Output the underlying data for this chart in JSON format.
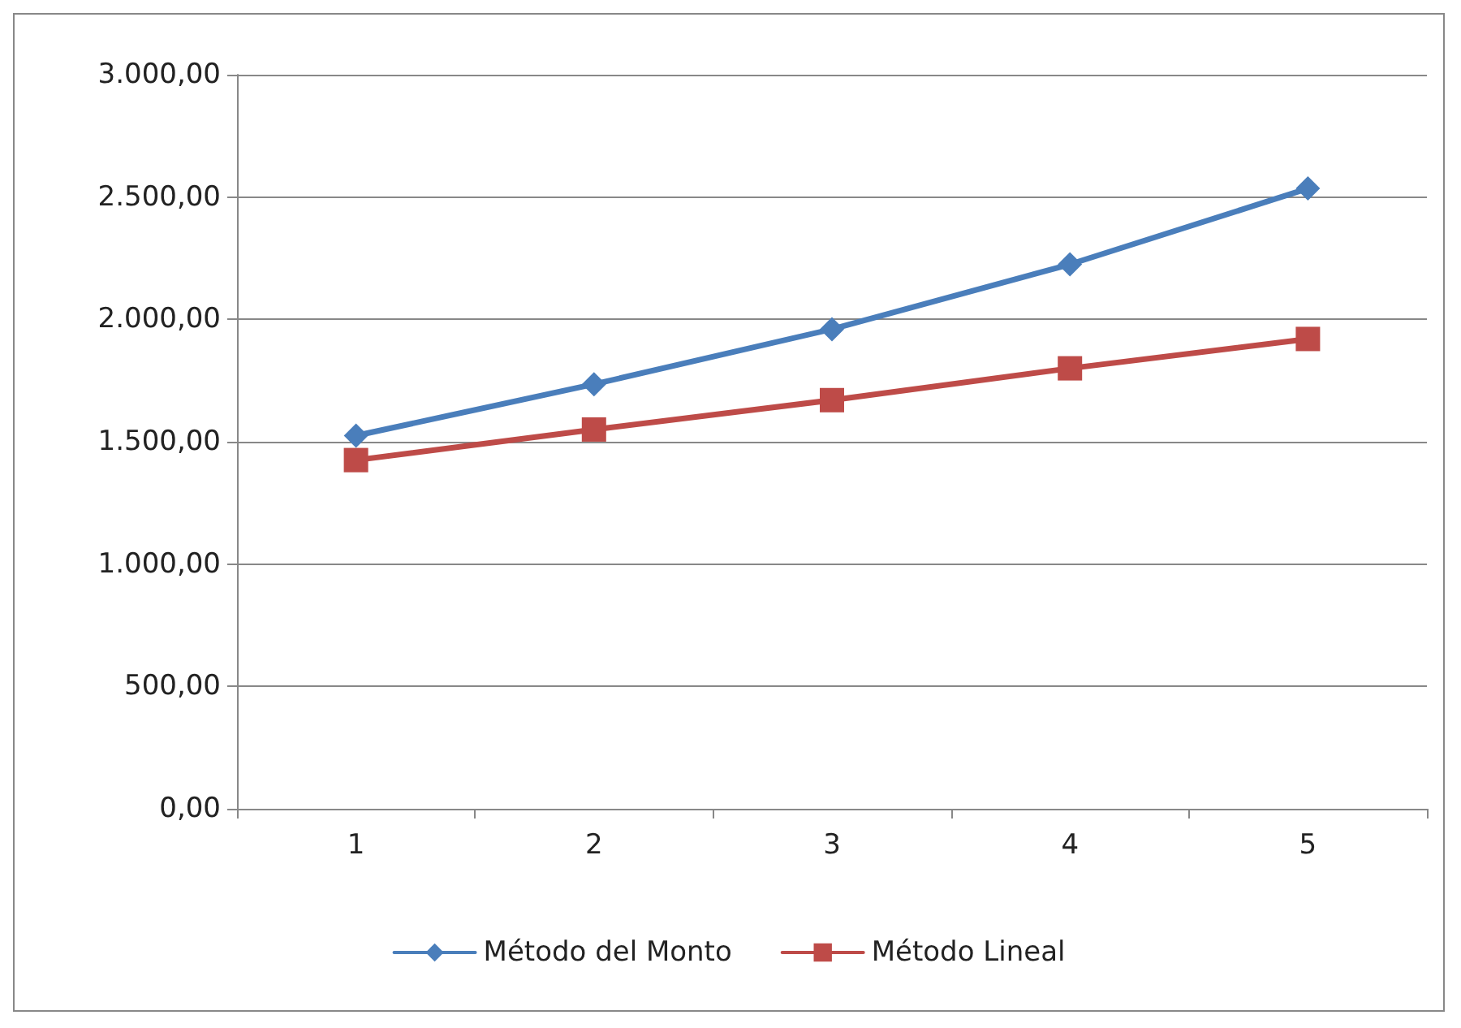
{
  "chart_data": {
    "type": "line",
    "categories": [
      "1",
      "2",
      "3",
      "4",
      "5"
    ],
    "series": [
      {
        "name": "Método del Monto",
        "color": "#4a7ebb",
        "values": [
          1525,
          1735,
          1960,
          2225,
          2535
        ],
        "marker": "diamond"
      },
      {
        "name": "Método Lineal",
        "color": "#be4b48",
        "values": [
          1425,
          1550,
          1670,
          1800,
          1920
        ],
        "marker": "square"
      }
    ],
    "ylim": [
      0,
      3000
    ],
    "yticks": [
      {
        "value": 0,
        "label": "0,00"
      },
      {
        "value": 500,
        "label": "500,00"
      },
      {
        "value": 1000,
        "label": "1.000,00"
      },
      {
        "value": 1500,
        "label": "1.500,00"
      },
      {
        "value": 2000,
        "label": "2.000,00"
      },
      {
        "value": 2500,
        "label": "2.500,00"
      },
      {
        "value": 3000,
        "label": "3.000,00"
      }
    ],
    "grid": "y",
    "legend": "bottom",
    "line_style": "solid"
  }
}
